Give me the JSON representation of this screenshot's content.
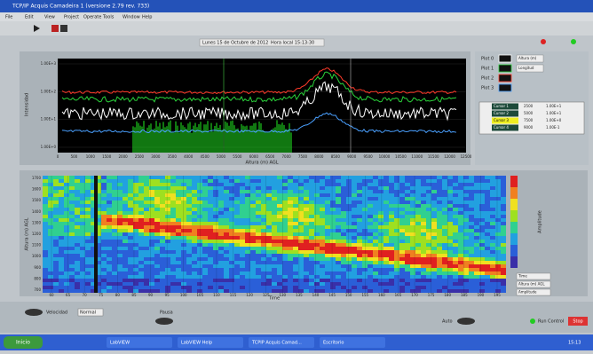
{
  "window": {
    "title": "TCP/IP Acquis Camadeira 1 (versione 2.79 rev. 733)",
    "menu": [
      "File",
      "Edit",
      "View",
      "Project",
      "Operate",
      "Tools",
      "Window",
      "Help"
    ]
  },
  "status": {
    "date": "Lunes 15 de Octubre de 2012",
    "time": "Hora local 15:13:30"
  },
  "spectrum": {
    "y_axis_label": "Intensidad",
    "x_axis_label": "Altura (m) AGL",
    "yticks": [
      "1.00E+3",
      "1.00E+2",
      "1.00E+1",
      "1.00E+0"
    ],
    "xticks": [
      "0",
      "500",
      "1000",
      "1500",
      "2000",
      "2500",
      "3000",
      "3500",
      "4000",
      "4500",
      "5000",
      "5500",
      "6000",
      "6500",
      "7000",
      "7500",
      "8000",
      "8500",
      "9000",
      "9500",
      "10000",
      "10500",
      "11000",
      "11500",
      "12000",
      "12500"
    ]
  },
  "plots": [
    "Plot 0",
    "Plot 1",
    "Plot 2",
    "Plot 3"
  ],
  "plot_fields": [
    "Altura (m)",
    "Longitud"
  ],
  "cursors": [
    {
      "name": "Cursor 1",
      "x": "2500",
      "y": "1.00E+1"
    },
    {
      "name": "Cursor 2",
      "x": "5000",
      "y": "1.00E+1"
    },
    {
      "name": "Cursor 3",
      "x": "7500",
      "y": "1.00E+0"
    },
    {
      "name": "Cursor 4",
      "x": "9000",
      "y": "1.00E-1"
    }
  ],
  "heatmap": {
    "y_axis_label": "Altura (m) AGL",
    "x_axis_label": "Time",
    "yticks": [
      "1700",
      "1600",
      "1500",
      "1400",
      "1300",
      "1200",
      "1100",
      "1000",
      "900",
      "800",
      "700"
    ],
    "xticks": [
      "60",
      "65",
      "70",
      "75",
      "80",
      "85",
      "90",
      "95",
      "100",
      "105",
      "110",
      "115",
      "120",
      "125",
      "130",
      "135",
      "140",
      "145",
      "150",
      "155",
      "160",
      "165",
      "170",
      "175",
      "180",
      "185",
      "190",
      "195"
    ],
    "colorbar_label": "Amplitude",
    "fields": [
      "Time",
      "Altura (m) AGL",
      "Amplitude"
    ]
  },
  "controls": {
    "speed_label": "Velocidad",
    "speed_value": "Normal",
    "pause_label": "Pausa",
    "auto_label": "Auto",
    "run_label": "Run Control",
    "stop_label": "Stop"
  },
  "taskbar": {
    "start": "Inicio",
    "items": [
      "LabVIEW",
      "LabVIEW Help",
      "TCPIP Acquis Camad...",
      "Escritorio"
    ],
    "clock": "15:13"
  }
}
